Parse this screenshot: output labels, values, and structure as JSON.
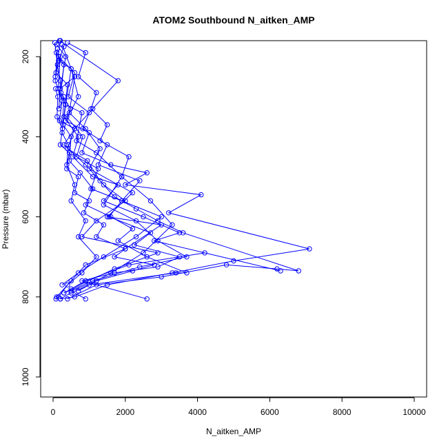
{
  "chart_data": {
    "type": "line",
    "title": "ATOM2 Southbound N_aitken_AMP",
    "xlabel": "N_aitken_AMP",
    "ylabel": "Pressure (mbar)",
    "xlim": [
      0,
      10000
    ],
    "ylim": [
      1050,
      160
    ],
    "y_reversed": true,
    "x_ticks": [
      "0",
      "2000",
      "4000",
      "6000",
      "8000",
      "10000"
    ],
    "y_ticks": [
      "200",
      "400",
      "600",
      "800",
      "1000"
    ],
    "grid": false,
    "legend": "none",
    "marker": "open-circle",
    "series": [
      {
        "x": [
          50,
          120,
          200,
          160,
          300,
          250,
          420,
          380,
          600,
          500,
          900,
          700,
          1200,
          800,
          400,
          150,
          80
        ],
        "y": [
          165,
          220,
          260,
          330,
          300,
          390,
          420,
          470,
          520,
          560,
          610,
          650,
          700,
          740,
          770,
          800,
          805
        ]
      },
      {
        "x": [
          100,
          350,
          200,
          600,
          450,
          900,
          1300,
          1000,
          2200,
          1500,
          3000,
          2000,
          900,
          500,
          100
        ],
        "y": [
          170,
          200,
          280,
          250,
          340,
          380,
          430,
          480,
          540,
          600,
          620,
          680,
          720,
          760,
          800
        ]
      },
      {
        "x": [
          200,
          80,
          400,
          300,
          700,
          550,
          1100,
          1800,
          1400,
          2500,
          3500,
          2800,
          6300,
          4200,
          2100,
          900,
          300
        ],
        "y": [
          160,
          240,
          270,
          350,
          400,
          450,
          500,
          520,
          560,
          600,
          640,
          660,
          735,
          690,
          720,
          760,
          790
        ]
      },
      {
        "x": [
          300,
          150,
          500,
          700,
          350,
          1000,
          800,
          1600,
          2600,
          2000,
          4100,
          3200,
          7100,
          5000,
          3300,
          1500,
          600,
          200
        ],
        "y": [
          175,
          210,
          230,
          300,
          360,
          390,
          440,
          470,
          490,
          520,
          545,
          590,
          680,
          710,
          740,
          770,
          800,
          805
        ]
      },
      {
        "x": [
          120,
          60,
          250,
          180,
          600,
          400,
          950,
          1300,
          1700,
          2300,
          2900,
          3600,
          6800,
          6200,
          4800,
          3000,
          1200,
          400
        ],
        "y": [
          180,
          260,
          310,
          360,
          380,
          430,
          460,
          510,
          550,
          580,
          610,
          640,
          735,
          730,
          720,
          750,
          770,
          805
        ]
      },
      {
        "x": [
          400,
          900,
          700,
          1200,
          1050,
          1500,
          1300,
          2100,
          1900,
          2700,
          3300,
          2500,
          1600,
          700
        ],
        "y": [
          165,
          190,
          250,
          290,
          330,
          370,
          410,
          450,
          500,
          560,
          620,
          690,
          740,
          785
        ]
      },
      {
        "x": [
          250,
          500,
          350,
          800,
          650,
          1200,
          1900,
          1400,
          2300,
          2900,
          3700,
          2400,
          1100,
          300
        ],
        "y": [
          170,
          230,
          320,
          340,
          410,
          440,
          500,
          570,
          610,
          660,
          700,
          725,
          760,
          790
        ]
      },
      {
        "x": [
          60,
          200,
          140,
          350,
          280,
          500,
          450,
          750,
          1100,
          900,
          1600,
          2200,
          1800,
          2600,
          3700,
          3400,
          1000,
          500,
          200
        ],
        "y": [
          250,
          200,
          280,
          320,
          370,
          400,
          460,
          490,
          530,
          570,
          600,
          630,
          660,
          700,
          740,
          740,
          770,
          790,
          805
        ]
      },
      {
        "x": [
          180,
          1800,
          1100,
          600,
          300,
          900,
          1400,
          2000,
          1200,
          800,
          2900,
          1700,
          500
        ],
        "y": [
          160,
          260,
          330,
          380,
          420,
          470,
          520,
          560,
          610,
          650,
          690,
          730,
          780
        ]
      },
      {
        "x": [
          90,
          300,
          220,
          480,
          380,
          820,
          650,
          1250,
          1050,
          1900,
          1550,
          2700,
          2250,
          3500,
          2900,
          1700,
          800,
          2600
        ],
        "y": [
          190,
          220,
          290,
          330,
          350,
          400,
          450,
          480,
          530,
          560,
          600,
          640,
          670,
          700,
          725,
          740,
          760,
          805
        ]
      },
      {
        "x": [
          150,
          600,
          420,
          1000,
          820,
          1500,
          1250,
          2400,
          1900,
          3000,
          2300,
          1400,
          700,
          250
        ],
        "y": [
          200,
          240,
          300,
          340,
          380,
          420,
          470,
          510,
          560,
          600,
          650,
          700,
          740,
          770
        ]
      },
      {
        "x": [
          70,
          130,
          110,
          260,
          200,
          450,
          380,
          700,
          600,
          1000,
          850,
          1400,
          1200,
          2000,
          1700,
          2800,
          2200,
          1200,
          500,
          900
        ],
        "y": [
          280,
          300,
          350,
          380,
          420,
          440,
          480,
          500,
          540,
          560,
          590,
          620,
          650,
          680,
          700,
          720,
          735,
          760,
          785,
          805
        ]
      }
    ]
  }
}
